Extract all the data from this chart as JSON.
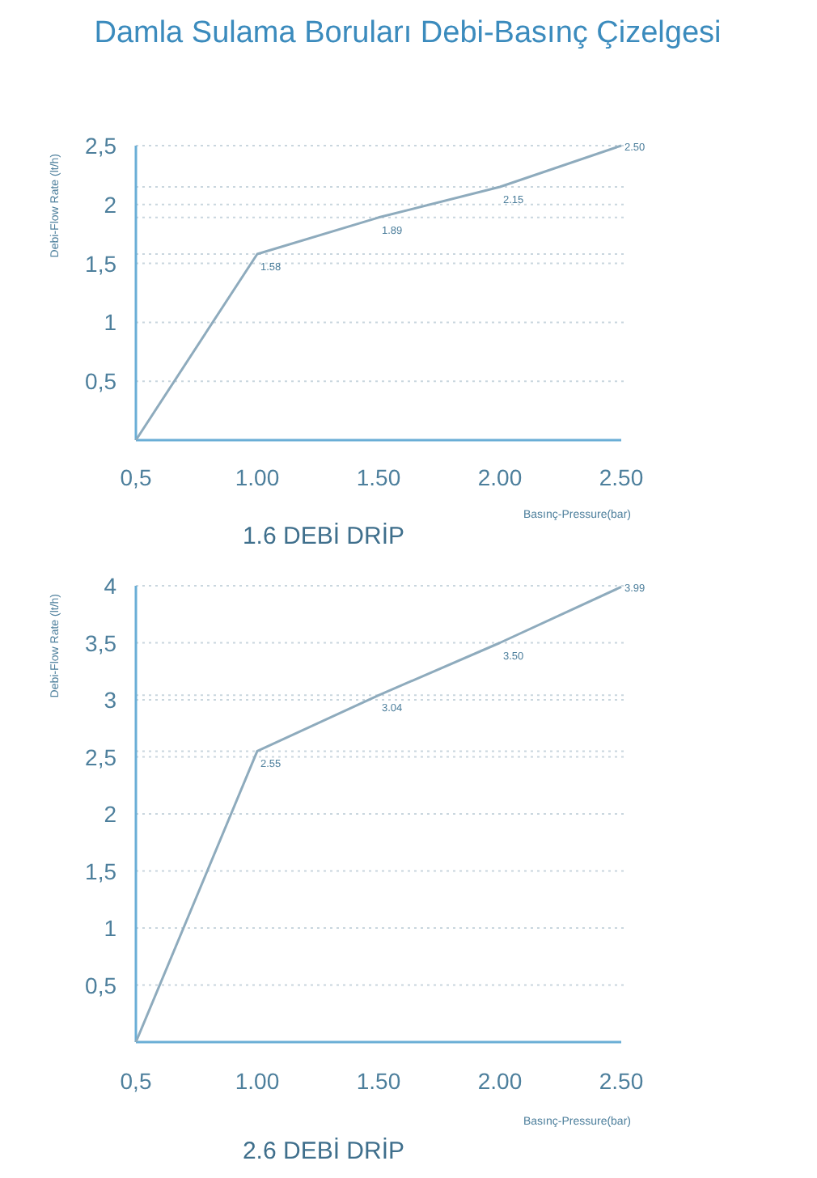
{
  "chart_data": [
    {
      "type": "line",
      "title": "Damla Sulama Boruları Debi-Basınç Çizelgesi",
      "subtitle": "1.6 DEBİ DRİP",
      "xlabel": "Basınç-Pressure(bar)",
      "ylabel": "Debi-Flow Rate (lt/h)",
      "x": [
        0.5,
        1,
        1.5,
        2,
        2.5
      ],
      "series": [
        {
          "color": "#8eabbd",
          "values": [
            0,
            1.58,
            1.89,
            2.15,
            2.5
          ]
        }
      ],
      "value_labels": [
        null,
        "1.58",
        "1.89",
        "2.15",
        "2.50"
      ],
      "xlim": [
        0.5,
        2.5
      ],
      "xticks": [
        {
          "value": 0.5,
          "label": "0,5"
        },
        {
          "value": 1,
          "label": "1.00"
        },
        {
          "value": 1.5,
          "label": "1.50"
        },
        {
          "value": 2,
          "label": "2.00"
        },
        {
          "value": 2.5,
          "label": "2.50"
        }
      ],
      "ylim": [
        0,
        2.5
      ],
      "yticks": [
        {
          "value": 0.5,
          "label": "0,5"
        },
        1,
        {
          "value": 1.5,
          "label": "1,5"
        },
        2,
        {
          "value": 2.5,
          "label": "2,5"
        }
      ],
      "grid": "y",
      "ref_lines": [
        {
          "axis": "y",
          "value": 1.58
        },
        {
          "axis": "y",
          "value": 1.89
        },
        {
          "axis": "y",
          "value": 2.15
        }
      ],
      "marker": "none",
      "line_style": "solid"
    },
    {
      "type": "line",
      "subtitle": "2.6 DEBİ DRİP",
      "xlabel": "Basınç-Pressure(bar)",
      "ylabel": "Debi-Flow Rate (lt/h)",
      "x": [
        0.5,
        1,
        1.5,
        2,
        2.5
      ],
      "series": [
        {
          "color": "#8eabbd",
          "values": [
            0,
            2.55,
            3.04,
            3.5,
            3.99
          ]
        }
      ],
      "value_labels": [
        null,
        "2.55",
        "3.04",
        "3.50",
        "3.99"
      ],
      "xlim": [
        0.5,
        2.5
      ],
      "xticks": [
        {
          "value": 0.5,
          "label": "0,5"
        },
        {
          "value": 1,
          "label": "1.00"
        },
        {
          "value": 1.5,
          "label": "1.50"
        },
        {
          "value": 2,
          "label": "2.00"
        },
        {
          "value": 2.5,
          "label": "2.50"
        }
      ],
      "ylim": [
        0,
        4
      ],
      "yticks": [
        {
          "value": 0.5,
          "label": "0,5"
        },
        1,
        {
          "value": 1.5,
          "label": "1,5"
        },
        2,
        {
          "value": 2.5,
          "label": "2,5"
        },
        3,
        {
          "value": 3.5,
          "label": "3,5"
        },
        4
      ],
      "grid": "y",
      "ref_lines": [
        {
          "axis": "y",
          "value": 2.55
        },
        {
          "axis": "y",
          "value": 3.04
        }
      ],
      "marker": "none",
      "line_style": "solid"
    }
  ]
}
